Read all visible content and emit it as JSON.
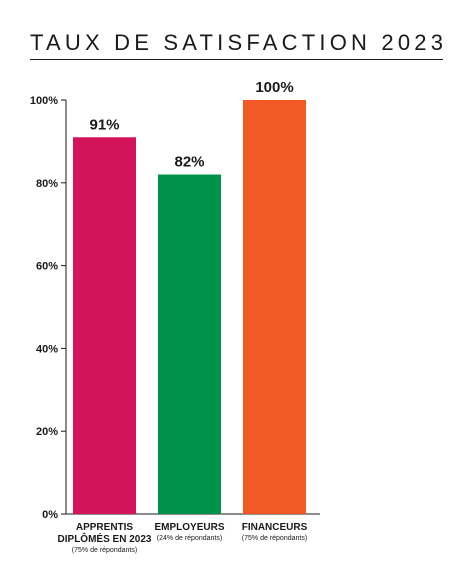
{
  "chart_data": {
    "type": "bar",
    "title": "TAUX DE SATISFACTION 2023",
    "categories": [
      {
        "label_lines": [
          "APPRENTIS",
          "DIPLÔMÉS EN 2023"
        ],
        "note": "(75% de répondants)"
      },
      {
        "label_lines": [
          "EMPLOYEURS"
        ],
        "note": "(24% de répondants)"
      },
      {
        "label_lines": [
          "FINANCEURS"
        ],
        "note": "(75% de répondants)"
      }
    ],
    "values": [
      91,
      82,
      100
    ],
    "value_labels": [
      "91%",
      "82%",
      "100%"
    ],
    "colors": [
      "#d4145a",
      "#00924a",
      "#f15a24"
    ],
    "yticks": [
      "0%",
      "20%",
      "40%",
      "60%",
      "80%",
      "100%"
    ],
    "ylim": [
      0,
      100
    ],
    "grid": false,
    "legend": "none"
  }
}
